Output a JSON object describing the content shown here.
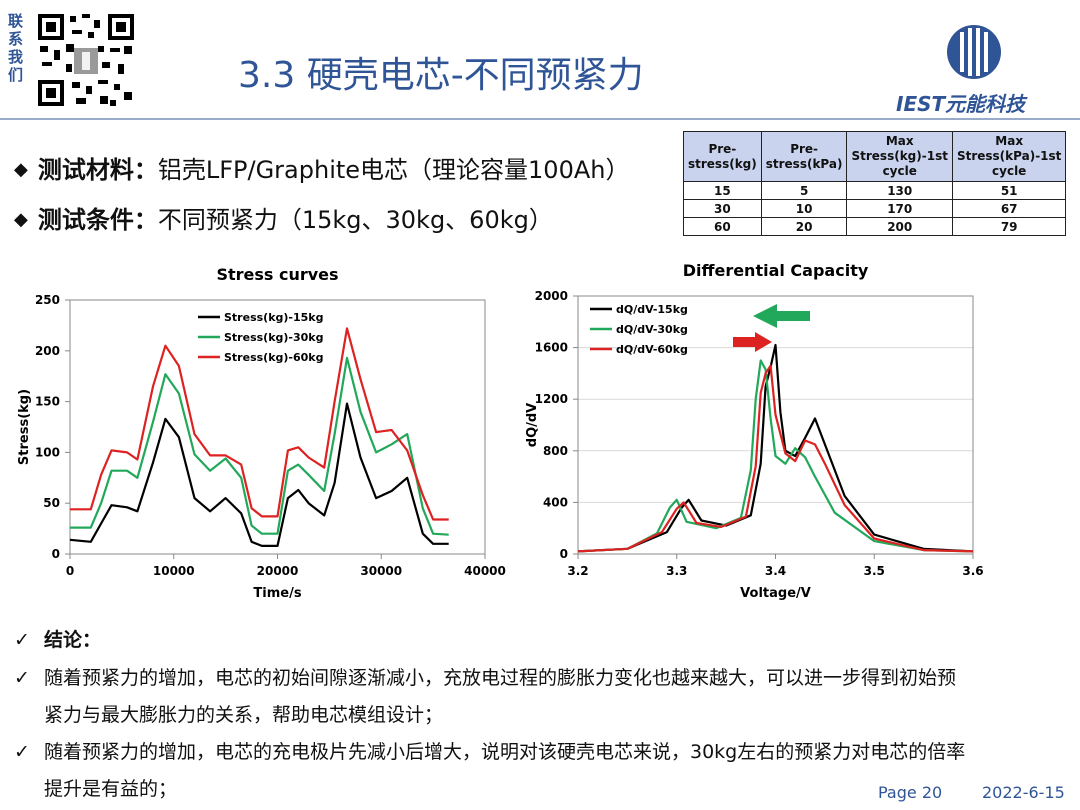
{
  "header": {
    "contact_label": "联系我们",
    "slide_title": "3.3 硬壳电芯-不同预紧力",
    "logo_text": "IEST元能科技"
  },
  "bullets": [
    {
      "marker": "◆",
      "key": "测试材料：",
      "value": "铝壳LFP/Graphite电芯（理论容量100Ah）"
    },
    {
      "marker": "◆",
      "key": "测试条件：",
      "value": "不同预紧力（15kg、30kg、60kg）"
    }
  ],
  "table": {
    "headers": [
      "Pre-stress(kg)",
      "Pre-stress(kPa)",
      "Max Stress(kg)-1st cycle",
      "Max Stress(kPa)-1st cycle"
    ],
    "rows": [
      [
        "15",
        "5",
        "130",
        "51"
      ],
      [
        "30",
        "10",
        "170",
        "67"
      ],
      [
        "60",
        "20",
        "200",
        "79"
      ]
    ]
  },
  "chart_data": [
    {
      "type": "line",
      "title": "Stress curves",
      "xlabel": "Time/s",
      "ylabel": "Stress(kg)",
      "xlim": [
        0,
        40000
      ],
      "ylim": [
        0,
        250
      ],
      "xticks": [
        "0",
        "10000",
        "20000",
        "30000",
        "40000"
      ],
      "yticks": [
        "0",
        "50",
        "100",
        "150",
        "200",
        "250"
      ],
      "grid": false,
      "legend": "top-center",
      "series": [
        {
          "name": "Stress(kg)-15kg",
          "color": "#000000",
          "x": [
            0,
            2000,
            3000,
            4000,
            5500,
            6500,
            8000,
            9200,
            10500,
            12000,
            13500,
            15000,
            16500,
            17500,
            18500,
            20000,
            21000,
            22000,
            23000,
            24500,
            25500,
            26700,
            28000,
            29500,
            31000,
            32500,
            34000,
            35000,
            36500
          ],
          "y": [
            14,
            12,
            30,
            48,
            46,
            42,
            90,
            133,
            115,
            55,
            42,
            55,
            40,
            12,
            8,
            8,
            55,
            63,
            50,
            38,
            70,
            148,
            95,
            55,
            62,
            75,
            20,
            10,
            10
          ]
        },
        {
          "name": "Stress(kg)-30kg",
          "color": "#22a85a",
          "x": [
            0,
            2000,
            3000,
            4000,
            5500,
            6500,
            8000,
            9200,
            10500,
            12000,
            13500,
            15000,
            16500,
            17500,
            18500,
            20000,
            21000,
            22000,
            23000,
            24500,
            25500,
            26700,
            28000,
            29500,
            31000,
            32500,
            34000,
            35000,
            36500
          ],
          "y": [
            26,
            26,
            50,
            82,
            82,
            75,
            130,
            177,
            158,
            98,
            82,
            94,
            75,
            28,
            20,
            20,
            82,
            88,
            78,
            62,
            118,
            193,
            140,
            100,
            108,
            118,
            45,
            20,
            19
          ]
        },
        {
          "name": "Stress(kg)-60kg",
          "color": "#dd2222",
          "x": [
            0,
            2000,
            3000,
            4000,
            5500,
            6500,
            8000,
            9200,
            10500,
            12000,
            13500,
            15000,
            16500,
            17500,
            18500,
            20000,
            21000,
            22000,
            23000,
            24500,
            25500,
            26700,
            28000,
            29500,
            31000,
            32500,
            34000,
            35000,
            36500
          ],
          "y": [
            44,
            44,
            78,
            102,
            100,
            93,
            165,
            205,
            185,
            118,
            97,
            97,
            88,
            45,
            37,
            37,
            102,
            105,
            95,
            85,
            150,
            222,
            172,
            120,
            122,
            102,
            58,
            34,
            34
          ]
        }
      ]
    },
    {
      "type": "line",
      "title": "Differential Capacity",
      "xlabel": "Voltage/V",
      "ylabel": "dQ/dV",
      "xlim": [
        3.2,
        3.6
      ],
      "ylim": [
        0,
        2000
      ],
      "xticks": [
        "3.2",
        "3.3",
        "3.4",
        "3.5",
        "3.6"
      ],
      "yticks": [
        "0",
        "400",
        "800",
        "1200",
        "1600",
        "2000"
      ],
      "grid": true,
      "legend": "top-left",
      "series": [
        {
          "name": "dQ/dV-15kg",
          "color": "#000000",
          "x": [
            3.2,
            3.25,
            3.29,
            3.305,
            3.312,
            3.325,
            3.35,
            3.375,
            3.385,
            3.39,
            3.395,
            3.4,
            3.405,
            3.41,
            3.42,
            3.43,
            3.44,
            3.45,
            3.47,
            3.5,
            3.55,
            3.6
          ],
          "y": [
            20,
            40,
            170,
            360,
            420,
            260,
            220,
            300,
            700,
            1300,
            1450,
            1620,
            1100,
            800,
            760,
            900,
            1050,
            850,
            450,
            150,
            40,
            20
          ]
        },
        {
          "name": "dQ/dV-30kg",
          "color": "#22a85a",
          "x": [
            3.2,
            3.25,
            3.28,
            3.293,
            3.3,
            3.31,
            3.34,
            3.365,
            3.375,
            3.38,
            3.385,
            3.39,
            3.395,
            3.4,
            3.41,
            3.42,
            3.43,
            3.44,
            3.46,
            3.5,
            3.55,
            3.6
          ],
          "y": [
            20,
            40,
            160,
            360,
            420,
            250,
            200,
            280,
            650,
            1200,
            1500,
            1430,
            1050,
            760,
            700,
            820,
            750,
            600,
            320,
            100,
            30,
            20
          ]
        },
        {
          "name": "dQ/dV-60kg",
          "color": "#dd2222",
          "x": [
            3.2,
            3.25,
            3.285,
            3.3,
            3.307,
            3.32,
            3.345,
            3.37,
            3.38,
            3.385,
            3.39,
            3.395,
            3.4,
            3.41,
            3.42,
            3.43,
            3.44,
            3.45,
            3.47,
            3.5,
            3.55,
            3.6
          ],
          "y": [
            20,
            40,
            170,
            350,
            400,
            240,
            210,
            290,
            680,
            1250,
            1400,
            1460,
            1080,
            780,
            720,
            880,
            850,
            700,
            380,
            120,
            30,
            20
          ]
        }
      ]
    }
  ],
  "conclusions": {
    "heading": "结论：",
    "items": [
      {
        "line1": "随着预紧力的增加，电芯的初始间隙逐渐减小，充放电过程的膨胀力变化也越来越大，可以进一步得到初始预",
        "line2": "紧力与最大膨胀力的关系，帮助电芯模组设计；"
      },
      {
        "line1": "随着预紧力的增加，电芯的充电极片先减小后增大，说明对该硬壳电芯来说，30kg左右的预紧力对电芯的倍率",
        "line2": "提升是有益的；"
      }
    ],
    "check_marker": "✓"
  },
  "footer": {
    "page": "Page 20",
    "date": "2022-6-15"
  },
  "colors": {
    "accent": "#2f5597",
    "table_header": "#c9d3ee",
    "green_arrow": "#22a85a",
    "red_arrow": "#dd2222"
  }
}
